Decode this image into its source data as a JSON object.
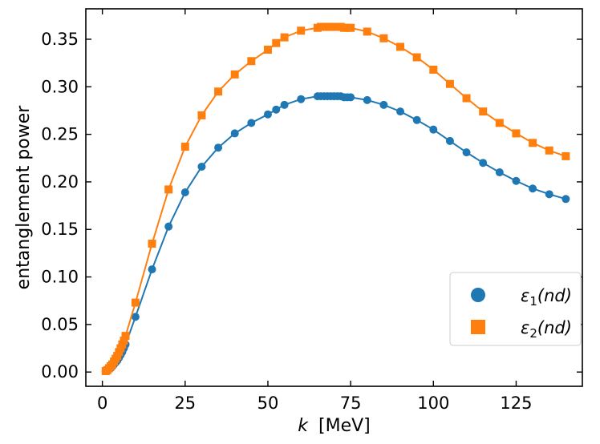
{
  "chart_data": {
    "type": "line",
    "title": "",
    "xlabel": "k",
    "xlabel_unit": "[MeV]",
    "ylabel": "entanglement power",
    "xlim": [
      -5,
      145
    ],
    "ylim": [
      -0.015,
      0.382
    ],
    "xticks": [
      0,
      25,
      50,
      75,
      100,
      125
    ],
    "yticks": [
      0.0,
      0.05,
      0.1,
      0.15,
      0.2,
      0.25,
      0.3,
      0.35
    ],
    "xtick_labels": [
      "0",
      "25",
      "50",
      "75",
      "100",
      "125"
    ],
    "ytick_labels": [
      "0.00",
      "0.05",
      "0.10",
      "0.15",
      "0.20",
      "0.25",
      "0.30",
      "0.35"
    ],
    "grid": false,
    "legend_position": "lower-right",
    "series": [
      {
        "name": "ε1(nd)",
        "legend_symbol": "ε",
        "legend_sub": "1",
        "legend_rest": "(nd)",
        "color": "#1f77b4",
        "marker": "circle",
        "x": [
          1,
          1.5,
          2,
          2.5,
          3,
          3.5,
          4,
          4.5,
          5,
          5.5,
          6,
          6.5,
          7,
          10,
          15,
          20,
          25,
          30,
          35,
          40,
          45,
          50,
          52.5,
          55,
          60,
          65,
          66,
          67,
          68,
          69,
          70,
          71,
          72,
          73,
          74,
          75,
          80,
          85,
          90,
          95,
          100,
          105,
          110,
          115,
          120,
          125,
          130,
          135,
          140
        ],
        "y": [
          0.001,
          0.002,
          0.003,
          0.004,
          0.006,
          0.008,
          0.01,
          0.012,
          0.015,
          0.018,
          0.021,
          0.025,
          0.029,
          0.058,
          0.108,
          0.153,
          0.189,
          0.216,
          0.236,
          0.251,
          0.262,
          0.271,
          0.276,
          0.281,
          0.287,
          0.29,
          0.29,
          0.29,
          0.29,
          0.29,
          0.29,
          0.29,
          0.29,
          0.289,
          0.289,
          0.289,
          0.286,
          0.281,
          0.274,
          0.265,
          0.255,
          0.243,
          0.231,
          0.22,
          0.21,
          0.201,
          0.193,
          0.187,
          0.182
        ]
      },
      {
        "name": "ε2(nd)",
        "legend_symbol": "ε",
        "legend_sub": "2",
        "legend_rest": "(nd)",
        "color": "#ff7f0e",
        "marker": "square",
        "x": [
          1,
          1.5,
          2,
          2.5,
          3,
          3.5,
          4,
          4.5,
          5,
          5.5,
          6,
          6.5,
          7,
          10,
          15,
          20,
          25,
          30,
          35,
          40,
          45,
          50,
          52.5,
          55,
          60,
          65,
          66,
          67,
          68,
          69,
          70,
          71,
          72,
          73,
          74,
          75,
          80,
          85,
          90,
          95,
          100,
          105,
          110,
          115,
          120,
          125,
          130,
          135,
          140
        ],
        "y": [
          0.001,
          0.002,
          0.004,
          0.006,
          0.008,
          0.011,
          0.014,
          0.017,
          0.021,
          0.025,
          0.029,
          0.033,
          0.038,
          0.073,
          0.135,
          0.192,
          0.237,
          0.27,
          0.295,
          0.313,
          0.327,
          0.339,
          0.346,
          0.352,
          0.359,
          0.362,
          0.363,
          0.363,
          0.363,
          0.363,
          0.363,
          0.363,
          0.363,
          0.362,
          0.362,
          0.362,
          0.358,
          0.351,
          0.342,
          0.331,
          0.318,
          0.303,
          0.288,
          0.274,
          0.262,
          0.251,
          0.241,
          0.233,
          0.227
        ]
      }
    ]
  }
}
